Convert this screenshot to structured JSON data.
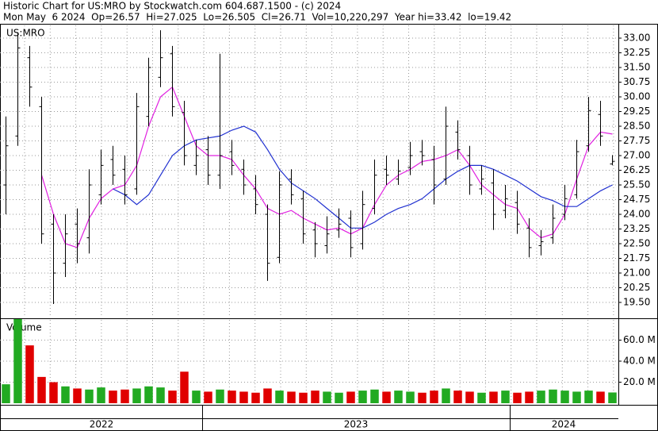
{
  "header": {
    "title": "Historic Chart for US:MRO by Stockwatch.com 604.687.1500 - (c) 2024",
    "quote": "Mon May  6 2024  Op=26.57  Hi=27.025  Lo=26.505  Cl=26.71  Vol=10,220,297  Year hi=33.42  lo=19.42"
  },
  "x_labels": [
    "2022",
    "2023",
    "2024"
  ],
  "chart_data": [
    {
      "type": "ohlc",
      "title": "US:MRO",
      "color": "#000000",
      "grid": true,
      "open": [
        25.5,
        28,
        32,
        29.5,
        23.5,
        21.5,
        23.5,
        22.8,
        25,
        26.8,
        26.3,
        25.3,
        29,
        31,
        32.2,
        29.2,
        26.5,
        27.3,
        26,
        27.2,
        26.3,
        25.3,
        24,
        21.8,
        25.8,
        24.8,
        23.2,
        22.4,
        23.2,
        23.8,
        22.5,
        24.3,
        26.3,
        25.8,
        26.4,
        27.2,
        26.8,
        25.8,
        28.2,
        27,
        25.3,
        25.6,
        24.2,
        24.6,
        23.3,
        22.4,
        22.8,
        24,
        25,
        27.5,
        29.1,
        26.57
      ],
      "high": [
        29,
        33.3,
        32.6,
        30,
        24,
        24,
        24.3,
        26.3,
        27.3,
        27.5,
        27,
        30.2,
        32,
        33.4,
        32.6,
        29.8,
        27.8,
        28,
        32.2,
        27.8,
        26.8,
        26,
        24.5,
        26.2,
        26.3,
        25.2,
        23.6,
        23.9,
        24.3,
        24.2,
        25.2,
        26.8,
        27,
        26.8,
        27.7,
        27.8,
        27.5,
        29.5,
        28.8,
        27.5,
        26.5,
        26.3,
        25.5,
        25.2,
        23.8,
        23.2,
        24.5,
        25.5,
        27.8,
        30,
        29.8,
        27.025
      ],
      "low": [
        24,
        27.5,
        29.5,
        22.5,
        19.42,
        20.8,
        21.5,
        22,
        24.5,
        25.5,
        24.5,
        25,
        28.5,
        30.5,
        29,
        26.5,
        26,
        25.5,
        25.3,
        26,
        25,
        24,
        20.6,
        21.5,
        24.5,
        22.5,
        21.8,
        22,
        22.8,
        21.8,
        22.2,
        24,
        25.5,
        25.5,
        26,
        26.5,
        24.5,
        25.5,
        26.8,
        25,
        25,
        23.2,
        23.8,
        23,
        21.8,
        21.9,
        22.5,
        23.7,
        24.8,
        27.2,
        27.5,
        26.505
      ],
      "close": [
        27.5,
        32.5,
        30.5,
        23,
        21,
        23,
        22.5,
        25.5,
        26.5,
        26,
        25,
        29.5,
        31.5,
        32,
        29.5,
        27,
        27,
        26,
        27,
        26.5,
        25.5,
        24.5,
        21.5,
        25.5,
        25,
        23,
        22.5,
        23,
        23.5,
        22.3,
        24.5,
        26,
        26,
        26.2,
        27,
        27,
        25.5,
        28.5,
        27.3,
        25.5,
        25.8,
        24,
        24.8,
        23.5,
        22.3,
        22.6,
        23.8,
        24.8,
        27.2,
        29.3,
        28,
        26.71
      ],
      "lines": [
        {
          "color": "#e020e0",
          "values": [
            null,
            null,
            null,
            26,
            24,
            22.5,
            22.3,
            23.8,
            24.8,
            25.3,
            25.5,
            26.5,
            28.5,
            30,
            30.5,
            29,
            27.5,
            27,
            27,
            26.8,
            26,
            25.3,
            24.3,
            24,
            24.2,
            23.8,
            23.5,
            23.2,
            23.3,
            23,
            23.3,
            24.5,
            25.5,
            26,
            26.3,
            26.7,
            26.8,
            27,
            27.3,
            26.5,
            25.5,
            25,
            24.5,
            24.3,
            23.3,
            22.8,
            23,
            24,
            25.8,
            27.5,
            28.2,
            28.1
          ]
        },
        {
          "color": "#2030d0",
          "values": [
            null,
            null,
            null,
            null,
            null,
            null,
            null,
            null,
            null,
            25.3,
            25,
            24.5,
            25,
            26,
            27,
            27.5,
            27.8,
            27.9,
            28,
            28.3,
            28.5,
            28.2,
            27.3,
            26.3,
            25.6,
            25.2,
            24.8,
            24.3,
            23.8,
            23.3,
            23.3,
            23.6,
            24,
            24.3,
            24.5,
            24.8,
            25.3,
            25.8,
            26.2,
            26.5,
            26.5,
            26.3,
            26,
            25.7,
            25.3,
            24.9,
            24.7,
            24.4,
            24.4,
            24.8,
            25.2,
            25.5
          ]
        }
      ],
      "ylim": [
        18.73,
        33.65
      ],
      "yticks": [
        {
          "value": 19.5,
          "label": "19.50"
        },
        {
          "value": 20.25,
          "label": "20.25"
        },
        {
          "value": 21,
          "label": "21.00"
        },
        {
          "value": 21.75,
          "label": "21.75"
        },
        {
          "value": 22.5,
          "label": "22.50"
        },
        {
          "value": 23.25,
          "label": "23.25"
        },
        {
          "value": 24,
          "label": "24.00"
        },
        {
          "value": 24.75,
          "label": "24.75"
        },
        {
          "value": 25.5,
          "label": "25.50"
        },
        {
          "value": 26.25,
          "label": "26.25"
        },
        {
          "value": 27,
          "label": "27.00"
        },
        {
          "value": 27.75,
          "label": "27.75"
        },
        {
          "value": 28.5,
          "label": "28.50"
        },
        {
          "value": 29.25,
          "label": "29.25"
        },
        {
          "value": 30,
          "label": "30.00"
        },
        {
          "value": 30.75,
          "label": "30.75"
        },
        {
          "value": 31.5,
          "label": "31.50"
        },
        {
          "value": 32.25,
          "label": "32.25"
        },
        {
          "value": 33,
          "label": "33.00"
        }
      ]
    },
    {
      "type": "bar",
      "title": "Volume",
      "up_color": "#22aa22",
      "down_color": "#e00000",
      "grid": true,
      "values": [
        18,
        80,
        55,
        25,
        20,
        16,
        14,
        13,
        15,
        12,
        13,
        14,
        16,
        15,
        12,
        30,
        12,
        11,
        13,
        12,
        11,
        10,
        14,
        12,
        11,
        10,
        12,
        11,
        10,
        11,
        12,
        13,
        11,
        12,
        11,
        10,
        12,
        14,
        12,
        11,
        10,
        11,
        12,
        10,
        11,
        12,
        13,
        12,
        11,
        12,
        11,
        10.220297
      ],
      "ylim": [
        0,
        80
      ],
      "yticks": [
        {
          "value": 20,
          "label": "20.0 M"
        },
        {
          "value": 40,
          "label": "40.0 M"
        },
        {
          "value": 60,
          "label": "60.0 M"
        }
      ]
    }
  ]
}
